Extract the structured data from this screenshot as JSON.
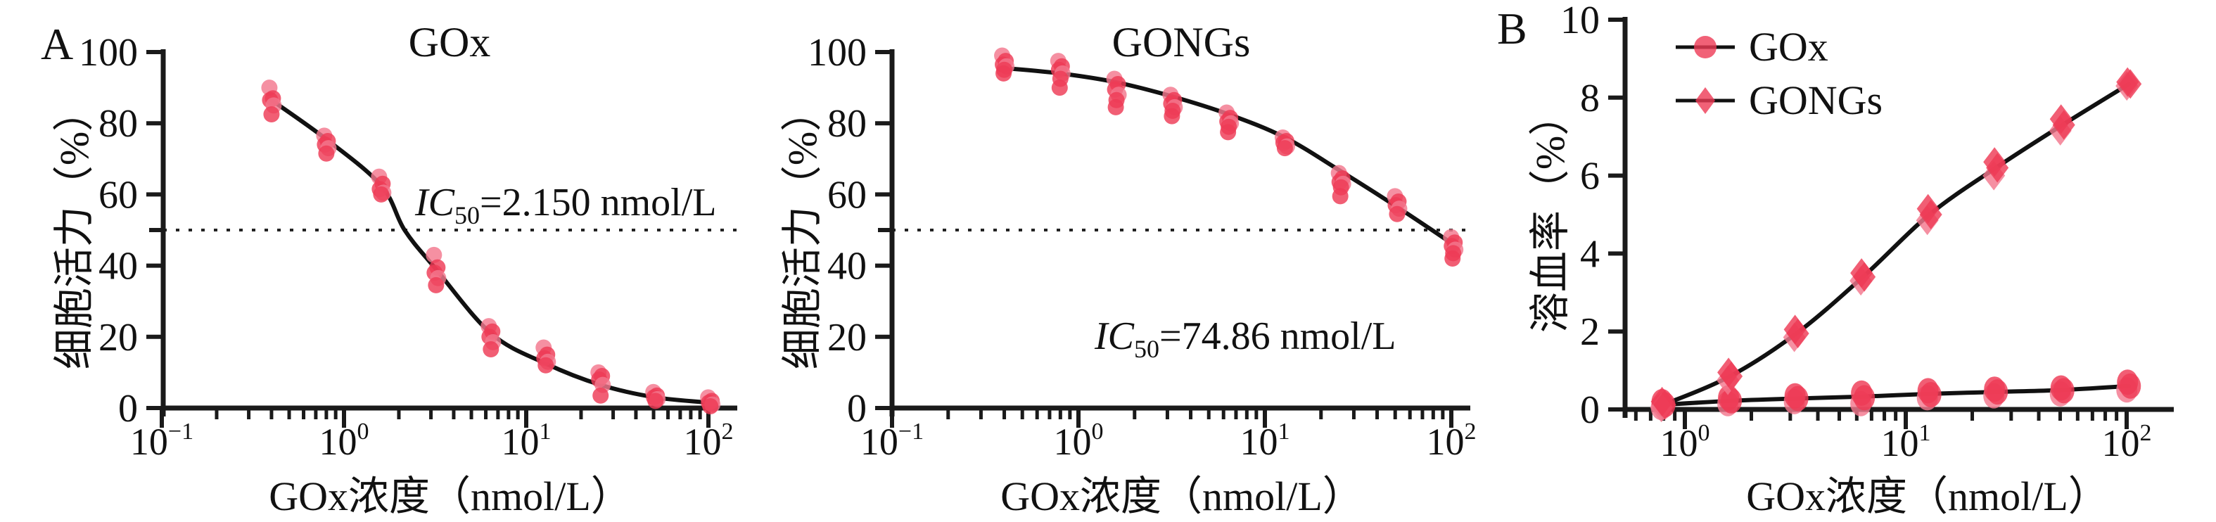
{
  "figure": {
    "panel_a_label": "A",
    "panel_b_label": "B",
    "colors": {
      "marker": "#ee3a55",
      "marker_light": "#f3788e",
      "line": "#111111",
      "axis": "#1a1a1a",
      "refline": "#222222"
    }
  },
  "chart_data": [
    {
      "id": "viability_gox",
      "type": "scatter",
      "title": "GOx",
      "xlabel": "GOx浓度（nmol/L）",
      "ylabel": "细胞活力（%）",
      "xscale": "log",
      "xticks_decades": [
        -1,
        0,
        1,
        2
      ],
      "ylim": [
        0,
        100
      ],
      "yticks": [
        0,
        20,
        40,
        60,
        80,
        100
      ],
      "ytick_unlabeled": [
        50
      ],
      "refline_y": 50,
      "annotation": {
        "prefix": "IC",
        "sub": "50",
        "value": "=2.150 nmol/L",
        "ic50_nmol_per_L": 2.15
      },
      "series": [
        {
          "name": "GOx",
          "marker": "circle",
          "replicates": [
            {
              "x": 0.4,
              "y": [
                90,
                87,
                86.5,
                85,
                82.5
              ]
            },
            {
              "x": 0.8,
              "y": [
                76.5,
                75,
                74,
                73,
                71.5
              ]
            },
            {
              "x": 1.6,
              "y": [
                65,
                63,
                61.5,
                60.5,
                60
              ]
            },
            {
              "x": 3.2,
              "y": [
                43,
                39.5,
                38,
                36.5,
                34.5
              ]
            },
            {
              "x": 6.4,
              "y": [
                23,
                21.5,
                20,
                18.5,
                16.5
              ]
            },
            {
              "x": 12.8,
              "y": [
                17,
                15,
                14,
                13,
                12
              ]
            },
            {
              "x": 25.6,
              "y": [
                10,
                9,
                8,
                6.5,
                3.5
              ]
            },
            {
              "x": 51.2,
              "y": [
                4.5,
                3.5,
                3,
                2.5,
                2
              ]
            },
            {
              "x": 102.4,
              "y": [
                3,
                2,
                1.5,
                1,
                0.5
              ]
            }
          ],
          "curve": [
            [
              0.4,
              86.5
            ],
            [
              0.8,
              75.5
            ],
            [
              1.6,
              62.5
            ],
            [
              2.15,
              50
            ],
            [
              3.2,
              39
            ],
            [
              6.4,
              21
            ],
            [
              12.8,
              12.5
            ],
            [
              25.6,
              6.5
            ],
            [
              51.2,
              3
            ],
            [
              102.4,
              1.5
            ]
          ]
        }
      ]
    },
    {
      "id": "viability_gongs",
      "type": "scatter",
      "title": "GONGs",
      "xlabel": "GOx浓度（nmol/L）",
      "ylabel": "细胞活力（%）",
      "xscale": "log",
      "xticks_decades": [
        -1,
        0,
        1,
        2
      ],
      "ylim": [
        0,
        100
      ],
      "yticks": [
        0,
        20,
        40,
        60,
        80,
        100
      ],
      "ytick_unlabeled": [
        50
      ],
      "refline_y": 50,
      "annotation": {
        "prefix": "IC",
        "sub": "50",
        "value": "=74.86 nmol/L",
        "ic50_nmol_per_L": 74.86
      },
      "series": [
        {
          "name": "GONGs",
          "marker": "circle",
          "replicates": [
            {
              "x": 0.4,
              "y": [
                99,
                97.5,
                96.5,
                96,
                95,
                94
              ]
            },
            {
              "x": 0.8,
              "y": [
                97.5,
                96,
                95,
                94,
                92.5,
                90
              ]
            },
            {
              "x": 1.6,
              "y": [
                92.5,
                91,
                89.5,
                88,
                86.5,
                84.5
              ]
            },
            {
              "x": 3.2,
              "y": [
                88,
                86.5,
                85.5,
                84.5,
                83.5,
                82
              ]
            },
            {
              "x": 6.4,
              "y": [
                83,
                81.5,
                80.5,
                80,
                79,
                77.5
              ]
            },
            {
              "x": 12.8,
              "y": [
                76,
                75,
                74.5,
                73.5,
                73
              ]
            },
            {
              "x": 25.6,
              "y": [
                66,
                64.5,
                63.5,
                63,
                62,
                59.5
              ]
            },
            {
              "x": 51.2,
              "y": [
                59.5,
                58,
                57,
                56,
                54.5
              ]
            },
            {
              "x": 102.4,
              "y": [
                48,
                46.5,
                45.5,
                44.5,
                43.5,
                42
              ]
            }
          ],
          "curve": [
            [
              0.4,
              95.5
            ],
            [
              0.8,
              94
            ],
            [
              1.6,
              91.5
            ],
            [
              3.2,
              87.5
            ],
            [
              6.4,
              82.5
            ],
            [
              12.8,
              76
            ],
            [
              25.6,
              66.5
            ],
            [
              51.2,
              56.5
            ],
            [
              102.4,
              46
            ]
          ]
        }
      ]
    },
    {
      "id": "hemolysis",
      "type": "scatter",
      "title": "",
      "xlabel": "GOx浓度（nmol/L）",
      "ylabel": "溶血率（%）",
      "xscale": "log",
      "xticks_decades": [
        0,
        1,
        2
      ],
      "ylim": [
        0,
        10
      ],
      "yticks": [
        0,
        2,
        4,
        6,
        8,
        10
      ],
      "ytick_unlabeled": [],
      "legend_position": "top-left",
      "series": [
        {
          "name": "GOx",
          "marker": "circle",
          "replicates": [
            {
              "x": 0.8,
              "y": [
                0.05,
                0.12,
                0.2
              ]
            },
            {
              "x": 1.6,
              "y": [
                0.15,
                0.22,
                0.3
              ]
            },
            {
              "x": 3.2,
              "y": [
                0.2,
                0.28,
                0.35
              ]
            },
            {
              "x": 6.4,
              "y": [
                0.15,
                0.3,
                0.42
              ]
            },
            {
              "x": 12.8,
              "y": [
                0.3,
                0.38,
                0.48
              ]
            },
            {
              "x": 25.6,
              "y": [
                0.35,
                0.45,
                0.52
              ]
            },
            {
              "x": 51.2,
              "y": [
                0.4,
                0.48,
                0.55
              ]
            },
            {
              "x": 102.4,
              "y": [
                0.5,
                0.6,
                0.7
              ]
            }
          ],
          "curve": [
            [
              0.8,
              0.12
            ],
            [
              1.6,
              0.22
            ],
            [
              3.2,
              0.28
            ],
            [
              6.4,
              0.33
            ],
            [
              12.8,
              0.4
            ],
            [
              25.6,
              0.45
            ],
            [
              51.2,
              0.5
            ],
            [
              102.4,
              0.6
            ]
          ]
        },
        {
          "name": "GONGs",
          "marker": "diamond",
          "replicates": [
            {
              "x": 0.8,
              "y": [
                0.05,
                0.12,
                0.2
              ]
            },
            {
              "x": 1.6,
              "y": [
                0.75,
                0.85,
                0.95
              ]
            },
            {
              "x": 3.2,
              "y": [
                1.85,
                1.95,
                2.05
              ]
            },
            {
              "x": 6.4,
              "y": [
                3.3,
                3.4,
                3.5
              ]
            },
            {
              "x": 12.8,
              "y": [
                4.85,
                5.0,
                5.15
              ]
            },
            {
              "x": 25.6,
              "y": [
                6.0,
                6.2,
                6.35
              ]
            },
            {
              "x": 51.2,
              "y": [
                7.15,
                7.3,
                7.45
              ]
            },
            {
              "x": 102.4,
              "y": [
                8.3,
                8.35,
                8.4
              ]
            }
          ],
          "curve": [
            [
              0.8,
              0.12
            ],
            [
              1.6,
              0.85
            ],
            [
              3.2,
              1.95
            ],
            [
              6.4,
              3.4
            ],
            [
              12.8,
              5.0
            ],
            [
              25.6,
              6.2
            ],
            [
              51.2,
              7.3
            ],
            [
              102.4,
              8.35
            ]
          ]
        }
      ]
    }
  ]
}
